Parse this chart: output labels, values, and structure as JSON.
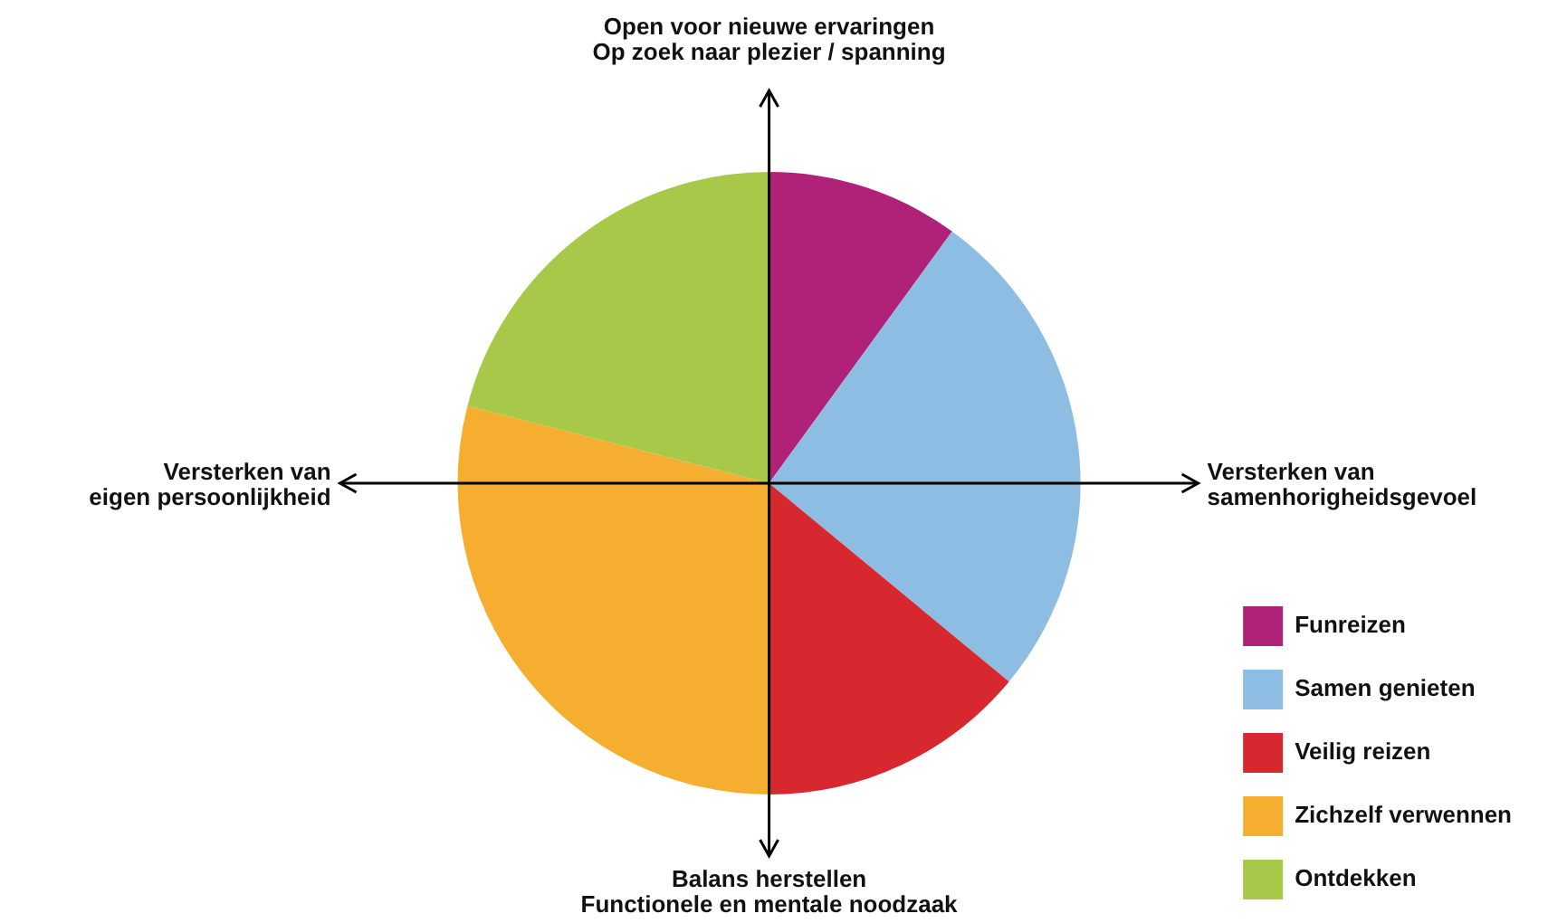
{
  "chart_data": {
    "type": "pie",
    "categories": [
      "Funreizen",
      "Samen genieten",
      "Veilig reizen",
      "Zichzelf verwennen",
      "Ontdekken"
    ],
    "values": [
      10,
      26,
      14,
      29,
      21
    ],
    "colors": [
      "#b0227a",
      "#8dbde3",
      "#d7282f",
      "#f5ae2f",
      "#a8c84a"
    ],
    "legend": "bottom right",
    "annotations": [
      "Open voor nieuwe ervaringen\nOp zoek naar plezier / spanning",
      "Versterken van\neigen persoonlijkheid",
      "Versterken van\nsamenhorigheidsgevoel",
      "Balans herstellen\nFunctionele en mentale noodzaak"
    ]
  }
}
